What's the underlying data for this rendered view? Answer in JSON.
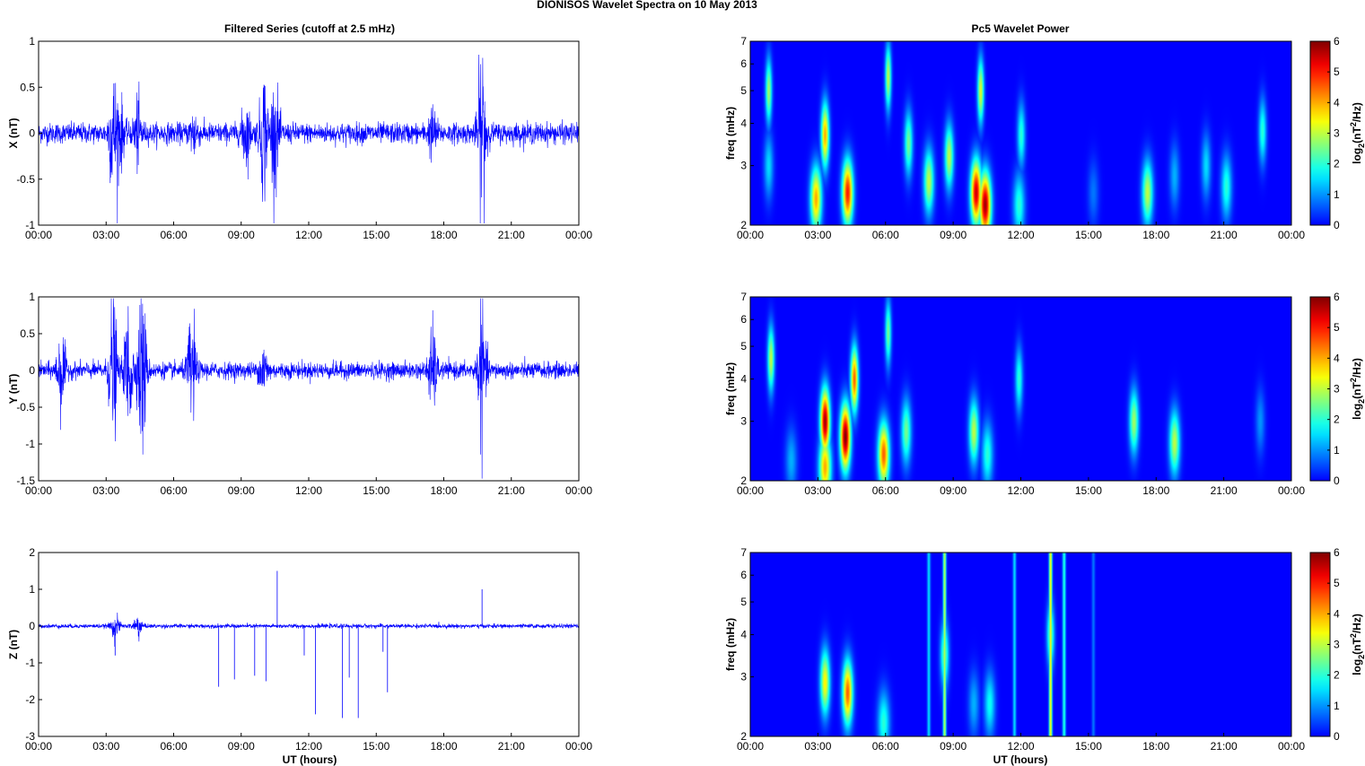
{
  "figure": {
    "suptitle": "DIONISOS Wavelet Spectra on 10 May      2013",
    "left_title": "Filtered Series (cutoff at 2.5 mHz)",
    "right_title": "Pc5 Wavelet Power",
    "x_label": "UT (hours)",
    "x_ticks": [
      "00:00",
      "03:00",
      "06:00",
      "09:00",
      "12:00",
      "15:00",
      "18:00",
      "21:00",
      "00:00"
    ],
    "freq_label": "freq (mHz)",
    "colorbar_label": "log2(nT^2/Hz)",
    "colorbar_ticks": [
      "0",
      "1",
      "2",
      "3",
      "4",
      "5",
      "6"
    ],
    "freq_ticks": [
      "2",
      "3",
      "4",
      "5",
      "6",
      "7"
    ],
    "colors": {
      "trace": "#0000ff",
      "background": "#00008f"
    }
  },
  "chart_data": [
    {
      "type": "line",
      "panel": "X",
      "ylabel": "X (nT)",
      "ylim": [
        -1,
        1
      ],
      "y_ticks": [
        "-1",
        "-0.5",
        "0",
        "0.5",
        "1"
      ],
      "x_range_hours": [
        0,
        24
      ],
      "noise_amplitude": 0.1,
      "bursts": [
        {
          "t": 3.3,
          "a": 0.55
        },
        {
          "t": 3.6,
          "a": 0.35
        },
        {
          "t": 4.4,
          "a": 0.3
        },
        {
          "t": 6.9,
          "a": 0.2
        },
        {
          "t": 9.2,
          "a": 0.3
        },
        {
          "t": 10.0,
          "a": 0.6
        },
        {
          "t": 10.5,
          "a": 0.5
        },
        {
          "t": 17.5,
          "a": 0.2
        },
        {
          "t": 19.7,
          "a": 0.9
        }
      ]
    },
    {
      "type": "line",
      "panel": "Y",
      "ylabel": "Y (nT)",
      "ylim": [
        -1.5,
        1
      ],
      "y_ticks": [
        "-1.5",
        "-1",
        "-0.5",
        "0",
        "0.5",
        "1"
      ],
      "x_range_hours": [
        0,
        24
      ],
      "noise_amplitude": 0.1,
      "bursts": [
        {
          "t": 1.0,
          "a": 0.5
        },
        {
          "t": 3.3,
          "a": 0.9
        },
        {
          "t": 4.0,
          "a": 0.85
        },
        {
          "t": 4.6,
          "a": 1.1
        },
        {
          "t": 6.8,
          "a": 0.7
        },
        {
          "t": 10.0,
          "a": 0.3
        },
        {
          "t": 17.5,
          "a": 0.5
        },
        {
          "t": 19.7,
          "a": 0.8
        }
      ]
    },
    {
      "type": "line",
      "panel": "Z",
      "ylabel": "Z (nT)",
      "ylim": [
        -3,
        2
      ],
      "y_ticks": [
        "-3",
        "-2",
        "-1",
        "0",
        "1",
        "2"
      ],
      "x_range_hours": [
        0,
        24
      ],
      "noise_amplitude": 0.05,
      "bursts": [
        {
          "t": 3.4,
          "a": 0.3
        },
        {
          "t": 4.4,
          "a": 0.3
        }
      ],
      "spikes": [
        {
          "t": 3.4,
          "v": -0.8
        },
        {
          "t": 8.0,
          "v": -1.65
        },
        {
          "t": 8.7,
          "v": -1.45
        },
        {
          "t": 9.6,
          "v": -1.35
        },
        {
          "t": 10.1,
          "v": -1.5
        },
        {
          "t": 10.6,
          "v": 1.5
        },
        {
          "t": 11.8,
          "v": -0.8
        },
        {
          "t": 12.3,
          "v": -2.4
        },
        {
          "t": 13.5,
          "v": -2.5
        },
        {
          "t": 13.8,
          "v": -1.4
        },
        {
          "t": 14.2,
          "v": -2.5
        },
        {
          "t": 15.3,
          "v": -0.7
        },
        {
          "t": 15.5,
          "v": -1.8
        },
        {
          "t": 19.7,
          "v": 1.0
        }
      ]
    },
    {
      "type": "heatmap",
      "panel": "X",
      "ylabel": "freq (mHz)",
      "ylim": [
        2,
        7
      ],
      "clim": [
        0,
        6
      ],
      "blobs": [
        {
          "t": 0.8,
          "f": 5.0,
          "p": 2.8
        },
        {
          "t": 0.8,
          "f": 3.0,
          "p": 1.5
        },
        {
          "t": 2.9,
          "f": 2.4,
          "p": 4.0
        },
        {
          "t": 3.3,
          "f": 3.7,
          "p": 4.0
        },
        {
          "t": 4.3,
          "f": 2.5,
          "p": 5.0
        },
        {
          "t": 6.1,
          "f": 5.5,
          "p": 3.0
        },
        {
          "t": 7.0,
          "f": 3.5,
          "p": 2.5
        },
        {
          "t": 7.9,
          "f": 2.7,
          "p": 3.0
        },
        {
          "t": 8.8,
          "f": 3.2,
          "p": 3.0
        },
        {
          "t": 10.0,
          "f": 2.5,
          "p": 5.5
        },
        {
          "t": 10.4,
          "f": 2.3,
          "p": 5.8
        },
        {
          "t": 10.2,
          "f": 5.0,
          "p": 3.2
        },
        {
          "t": 12.0,
          "f": 3.7,
          "p": 2.0
        },
        {
          "t": 11.9,
          "f": 2.3,
          "p": 2.0
        },
        {
          "t": 15.2,
          "f": 2.5,
          "p": 0.8
        },
        {
          "t": 17.6,
          "f": 2.5,
          "p": 3.0
        },
        {
          "t": 18.8,
          "f": 2.8,
          "p": 1.2
        },
        {
          "t": 20.2,
          "f": 3.0,
          "p": 1.5
        },
        {
          "t": 21.1,
          "f": 2.6,
          "p": 2.0
        },
        {
          "t": 22.7,
          "f": 3.8,
          "p": 2.0
        }
      ]
    },
    {
      "type": "heatmap",
      "panel": "Y",
      "ylabel": "freq (mHz)",
      "ylim": [
        2,
        7
      ],
      "clim": [
        0,
        6
      ],
      "blobs": [
        {
          "t": 0.9,
          "f": 4.6,
          "p": 3.0
        },
        {
          "t": 1.8,
          "f": 2.3,
          "p": 1.2
        },
        {
          "t": 3.3,
          "f": 3.0,
          "p": 5.8
        },
        {
          "t": 3.3,
          "f": 2.2,
          "p": 4.0
        },
        {
          "t": 4.2,
          "f": 2.7,
          "p": 6.0
        },
        {
          "t": 4.6,
          "f": 4.0,
          "p": 4.5
        },
        {
          "t": 5.9,
          "f": 2.4,
          "p": 4.5
        },
        {
          "t": 6.1,
          "f": 5.5,
          "p": 2.5
        },
        {
          "t": 6.9,
          "f": 2.8,
          "p": 2.5
        },
        {
          "t": 9.9,
          "f": 2.8,
          "p": 3.0
        },
        {
          "t": 10.5,
          "f": 2.4,
          "p": 2.0
        },
        {
          "t": 11.9,
          "f": 4.0,
          "p": 2.0
        },
        {
          "t": 17.0,
          "f": 3.0,
          "p": 2.8
        },
        {
          "t": 18.8,
          "f": 2.6,
          "p": 3.0
        },
        {
          "t": 22.6,
          "f": 3.0,
          "p": 1.0
        }
      ]
    },
    {
      "type": "heatmap",
      "panel": "Z",
      "ylabel": "freq (mHz)",
      "ylim": [
        2,
        7
      ],
      "clim": [
        0,
        6
      ],
      "blobs": [
        {
          "t": 3.3,
          "f": 2.9,
          "p": 3.5
        },
        {
          "t": 4.3,
          "f": 2.7,
          "p": 4.5
        },
        {
          "t": 5.9,
          "f": 2.2,
          "p": 2.0
        },
        {
          "t": 8.6,
          "f": 3.5,
          "p": 2.5
        },
        {
          "t": 9.9,
          "f": 2.5,
          "p": 1.2
        },
        {
          "t": 10.6,
          "f": 2.5,
          "p": 1.8
        },
        {
          "t": 13.3,
          "f": 4.0,
          "p": 2.5
        }
      ],
      "streaks": [
        {
          "t": 7.9,
          "p": 1.5
        },
        {
          "t": 8.6,
          "p": 3.0
        },
        {
          "t": 11.7,
          "p": 1.5
        },
        {
          "t": 13.3,
          "p": 3.5
        },
        {
          "t": 13.9,
          "p": 2.0
        },
        {
          "t": 15.2,
          "p": 0.8
        }
      ]
    }
  ]
}
